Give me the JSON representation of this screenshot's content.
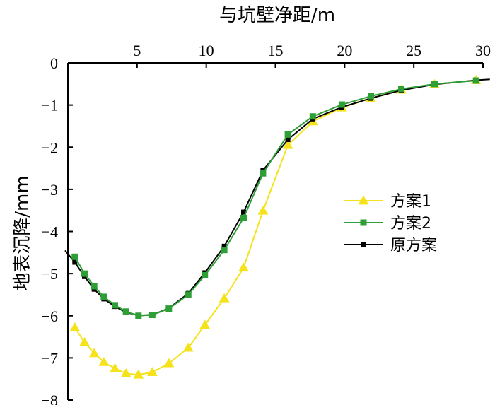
{
  "chart_data": {
    "type": "line",
    "xlabel": "与坑壁净距/m",
    "ylabel": "地表沉降/mm",
    "xlim": [
      0,
      30
    ],
    "ylim": [
      -8,
      0
    ],
    "xticks": [
      5,
      10,
      15,
      20,
      25,
      30
    ],
    "yticks": [
      0,
      -1,
      -2,
      -3,
      -4,
      -5,
      -6,
      -7,
      -8
    ],
    "x_axis_position": "top",
    "grid": false,
    "legend_position": "right",
    "series": [
      {
        "name": "方案1",
        "color": "#f5e21b",
        "marker": "triangle",
        "x": [
          0.5,
          1.2,
          1.9,
          2.6,
          3.4,
          4.2,
          5.1,
          6.1,
          7.3,
          8.7,
          9.9,
          11.3,
          12.7,
          14.1,
          15.9,
          17.7,
          19.8,
          21.9,
          24.1,
          26.5,
          29.5
        ],
        "y": [
          -6.28,
          -6.63,
          -6.89,
          -7.1,
          -7.25,
          -7.37,
          -7.4,
          -7.34,
          -7.13,
          -6.76,
          -6.22,
          -5.59,
          -4.86,
          -3.51,
          -1.95,
          -1.39,
          -1.06,
          -0.84,
          -0.64,
          -0.51,
          -0.41
        ]
      },
      {
        "name": "方案2",
        "color": "#2e9e36",
        "marker": "square",
        "x": [
          0.5,
          1.2,
          1.9,
          2.6,
          3.4,
          4.2,
          5.1,
          6.1,
          7.3,
          8.7,
          9.9,
          11.3,
          12.7,
          14.1,
          15.9,
          17.7,
          19.8,
          21.9,
          24.1,
          26.5,
          29.5
        ],
        "y": [
          -4.6,
          -5.0,
          -5.3,
          -5.55,
          -5.75,
          -5.9,
          -6.0,
          -5.98,
          -5.83,
          -5.5,
          -5.04,
          -4.44,
          -3.68,
          -2.62,
          -1.7,
          -1.27,
          -0.99,
          -0.79,
          -0.62,
          -0.5,
          -0.42
        ]
      },
      {
        "name": "原方案",
        "color": "#000000",
        "marker": "square",
        "x": [
          -0.3,
          0.5,
          1.2,
          1.9,
          2.6,
          3.4,
          4.2,
          5.1,
          6.1,
          7.3,
          8.7,
          9.9,
          11.3,
          12.7,
          14.1,
          15.9,
          17.7,
          19.8,
          21.9,
          24.1,
          26.5,
          29.5,
          30.5
        ],
        "y": [
          -4.45,
          -4.73,
          -5.07,
          -5.37,
          -5.6,
          -5.78,
          -5.92,
          -5.99,
          -5.98,
          -5.82,
          -5.47,
          -4.98,
          -4.35,
          -3.54,
          -2.55,
          -1.82,
          -1.33,
          -1.05,
          -0.84,
          -0.65,
          -0.51,
          -0.41,
          -0.39
        ]
      }
    ]
  }
}
